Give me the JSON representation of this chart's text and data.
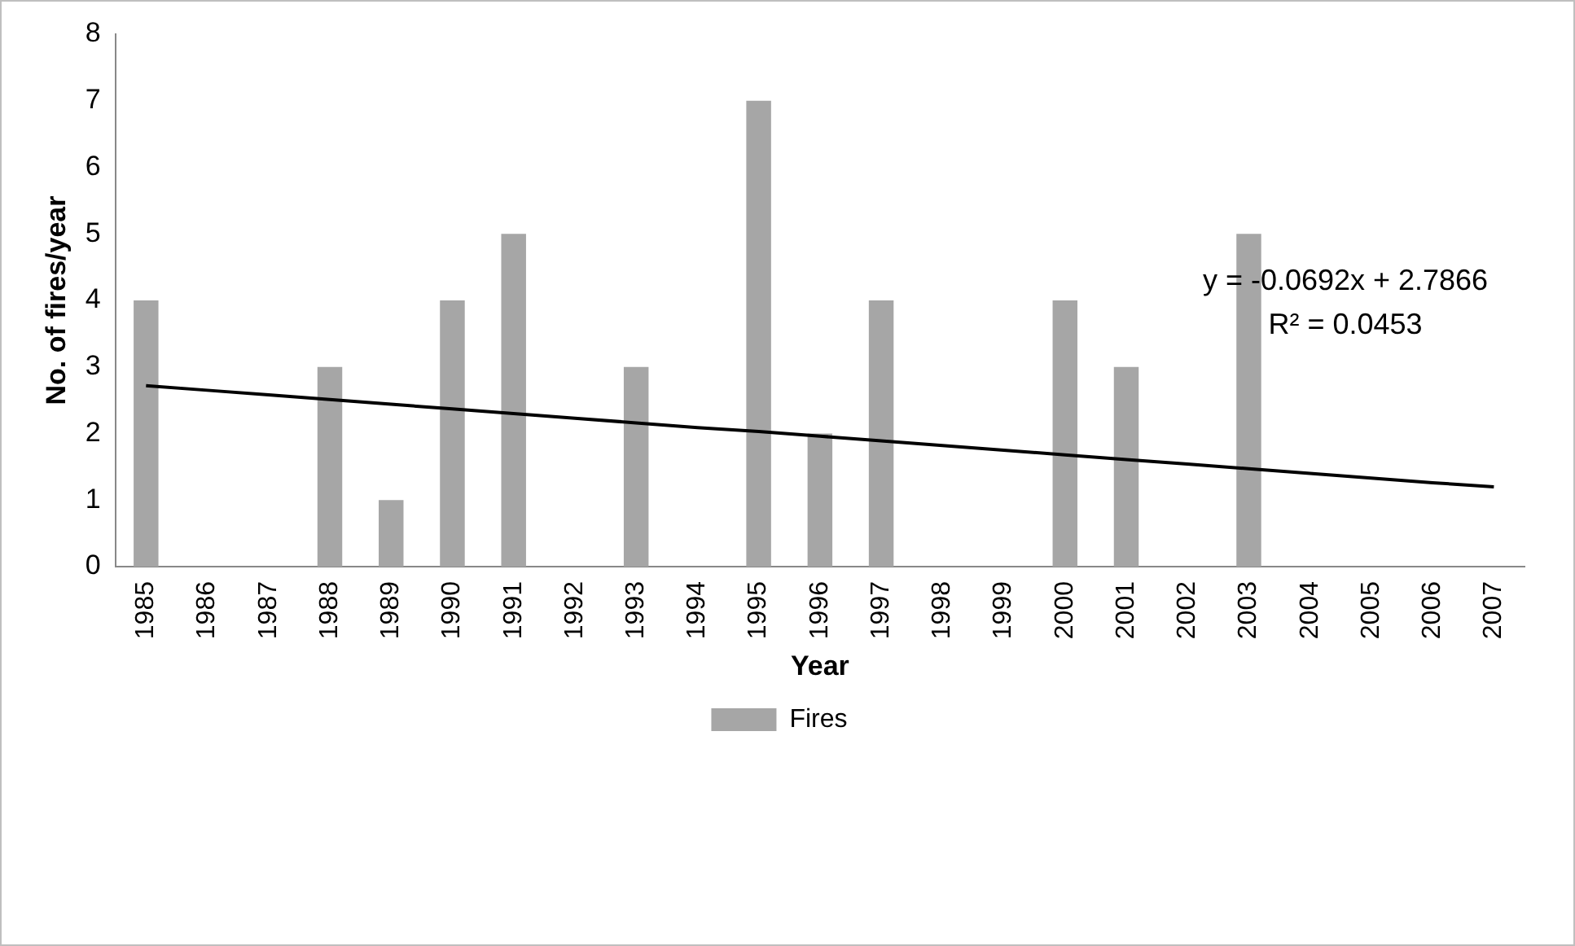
{
  "chart_data": {
    "type": "bar",
    "xlabel": "Year",
    "ylabel": "No. of fires/year",
    "categories": [
      "1985",
      "1986",
      "1987",
      "1988",
      "1989",
      "1990",
      "1991",
      "1992",
      "1993",
      "1994",
      "1995",
      "1996",
      "1997",
      "1998",
      "1999",
      "2000",
      "2001",
      "2002",
      "2003",
      "2004",
      "2005",
      "2006",
      "2007"
    ],
    "series": [
      {
        "name": "Fires",
        "color": "#a6a6a6",
        "values": [
          4,
          0,
          0,
          3,
          1,
          4,
          5,
          0,
          3,
          0,
          7,
          2,
          4,
          0,
          0,
          4,
          3,
          0,
          5,
          0,
          0,
          0,
          0
        ]
      },
      {
        "type": "line",
        "color": "#000000",
        "values": [
          2.72,
          2.65,
          2.58,
          2.51,
          2.44,
          2.37,
          2.3,
          2.23,
          2.16,
          2.09,
          2.03,
          1.96,
          1.89,
          1.82,
          1.75,
          1.68,
          1.61,
          1.54,
          1.47,
          1.4,
          1.33,
          1.26,
          1.2
        ]
      }
    ],
    "ylim": [
      0,
      8
    ],
    "yticks": [
      0,
      1,
      2,
      3,
      4,
      5,
      6,
      7,
      8
    ],
    "grid": false,
    "legend": "bottom",
    "marker": "none",
    "annotations": [
      "y = -0.0692x + 2.7866",
      "R² = 0.0453"
    ]
  }
}
